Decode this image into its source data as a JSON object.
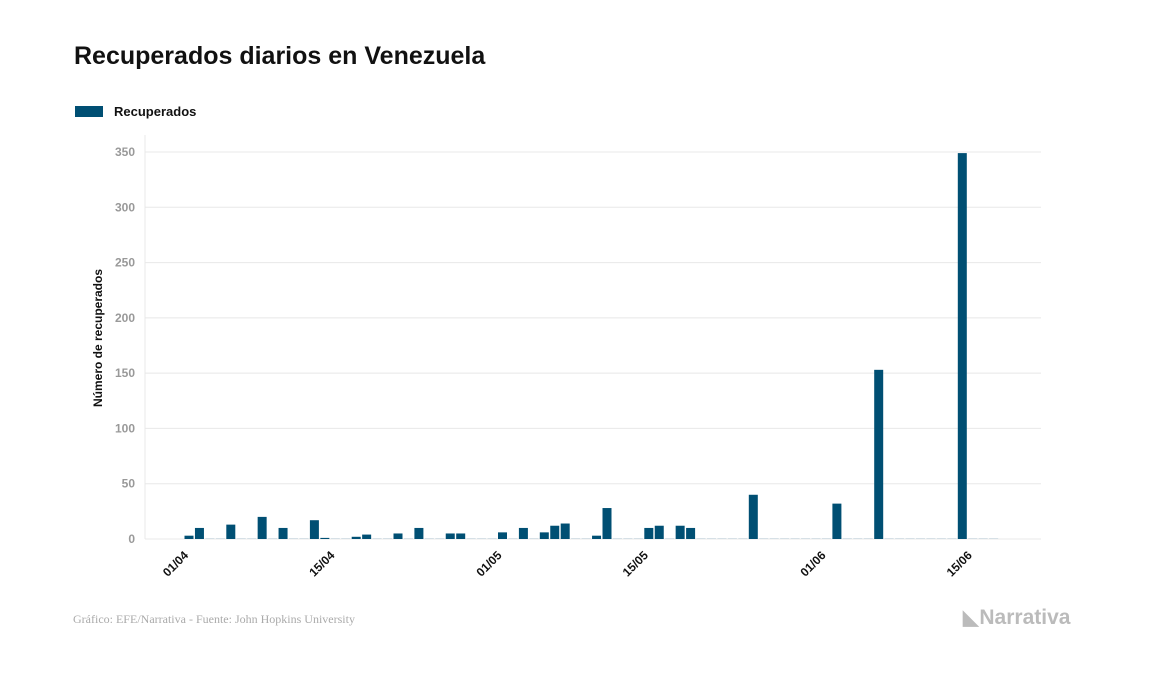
{
  "title": "Recuperados diarios en Venezuela",
  "footer": "Gráfico: EFE/Narrativa - Fuente: John Hopkins University",
  "logo": "Narrativa",
  "colors": {
    "bar": "#004f73",
    "grid": "#e8e8e8",
    "tick": "#999999"
  },
  "chart_data": {
    "type": "bar",
    "title": "Recuperados diarios en Venezuela",
    "xlabel": "",
    "ylabel": "Número de recuperados",
    "legend": [
      {
        "name": "Recuperados",
        "position": "top-left"
      }
    ],
    "ylim": [
      0,
      350
    ],
    "yticks": [
      0,
      50,
      100,
      150,
      200,
      250,
      300,
      350
    ],
    "x_start": "01/04",
    "xticks": [
      {
        "label": "01/04",
        "index": 0
      },
      {
        "label": "15/04",
        "index": 14
      },
      {
        "label": "01/05",
        "index": 30
      },
      {
        "label": "15/05",
        "index": 44
      },
      {
        "label": "01/06",
        "index": 61
      },
      {
        "label": "15/06",
        "index": 75
      }
    ],
    "values": [
      3,
      10,
      0,
      0,
      13,
      0,
      0,
      20,
      0,
      10,
      0,
      0,
      17,
      1,
      0,
      0,
      2,
      4,
      0,
      0,
      5,
      0,
      10,
      0,
      0,
      5,
      5,
      0,
      0,
      0,
      6,
      0,
      10,
      0,
      6,
      12,
      14,
      0,
      0,
      3,
      28,
      0,
      0,
      0,
      10,
      12,
      0,
      12,
      10,
      0,
      0,
      0,
      0,
      0,
      40,
      0,
      0,
      0,
      0,
      0,
      0,
      0,
      32,
      0,
      0,
      0,
      153,
      0,
      0,
      0,
      0,
      0,
      0,
      0,
      349,
      0,
      0,
      0
    ]
  }
}
